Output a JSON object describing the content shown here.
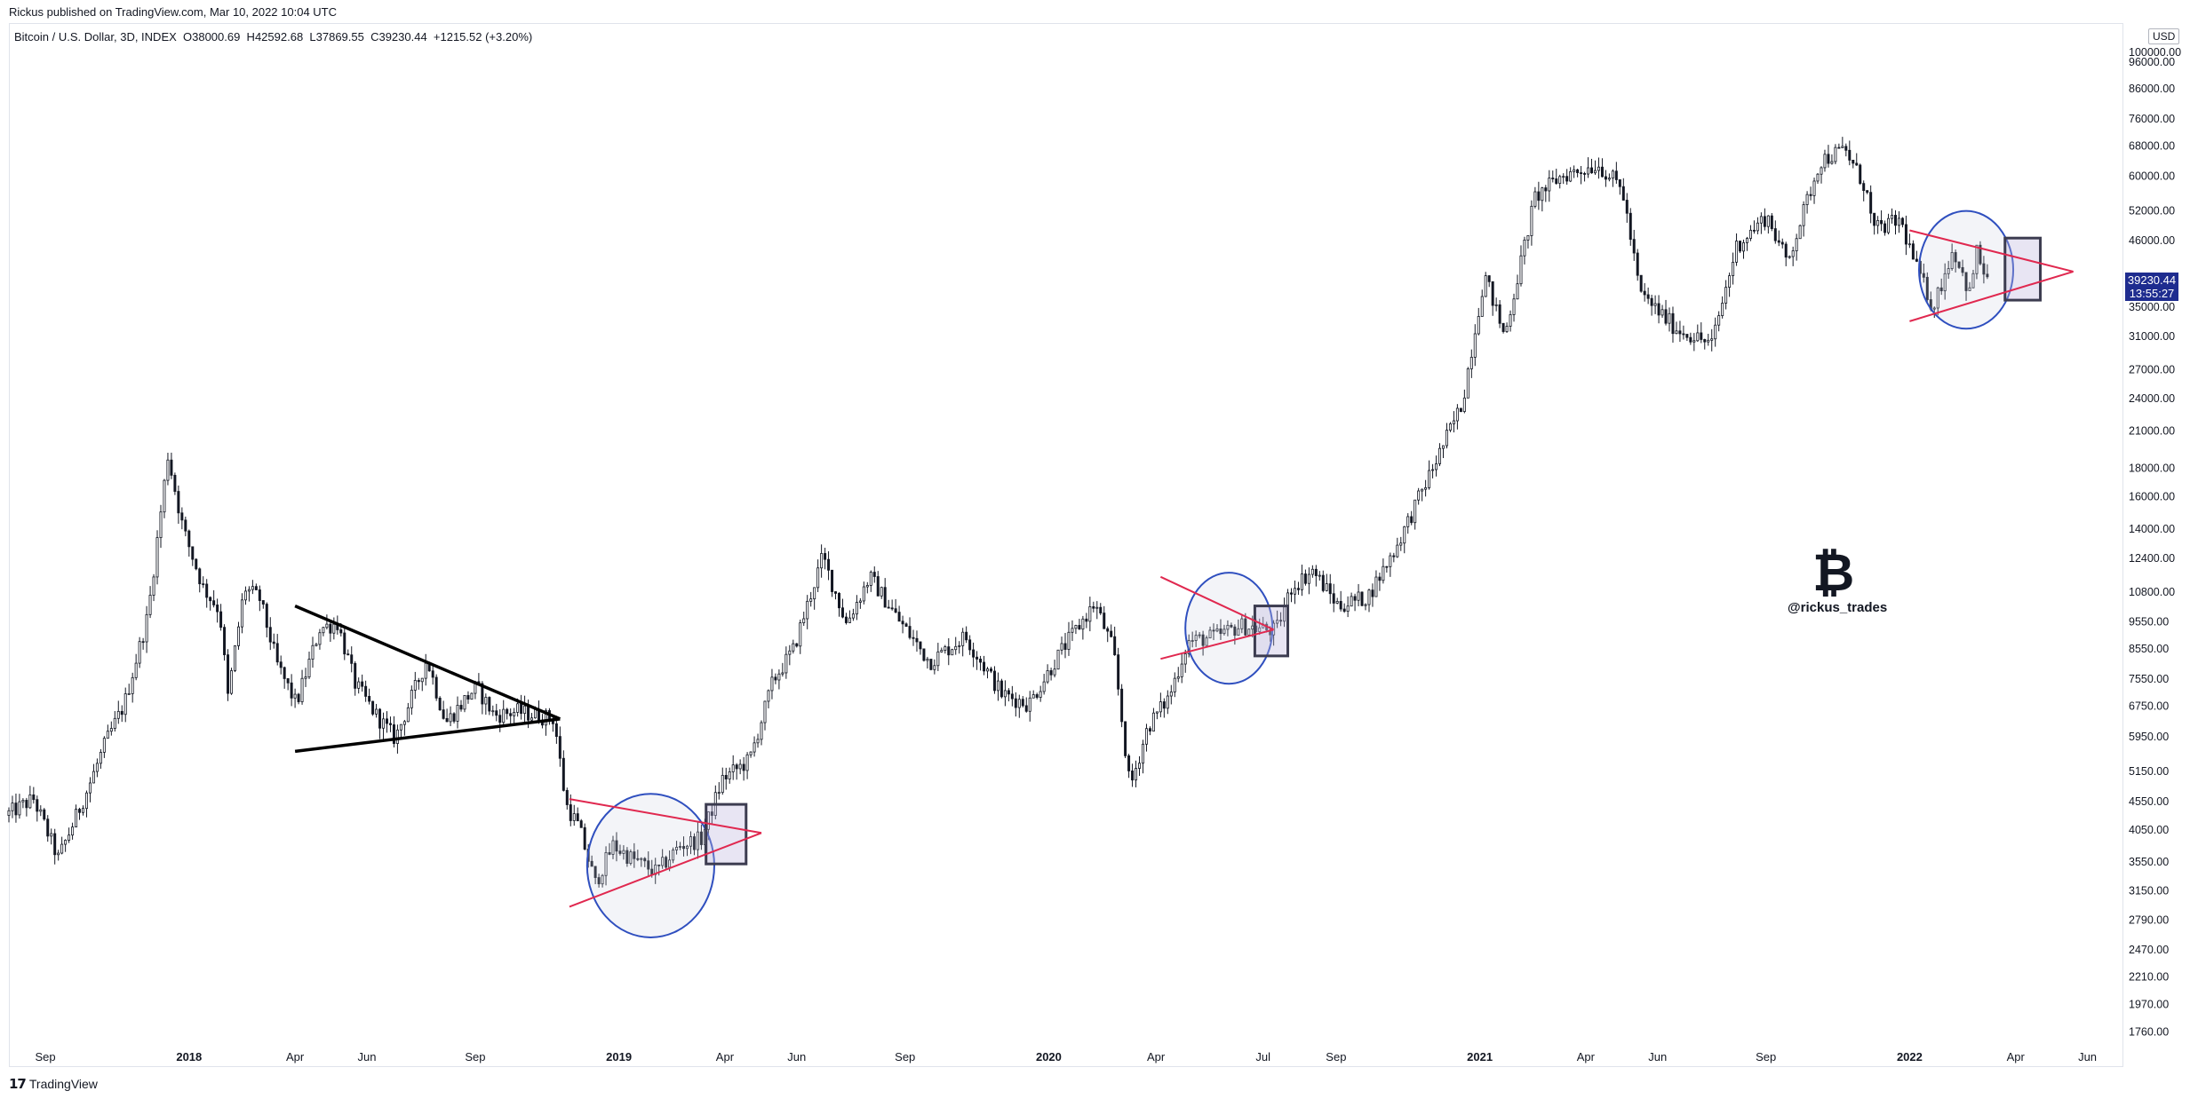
{
  "header": {
    "publisher": "Rickus published on TradingView.com, Mar 10, 2022 10:04 UTC",
    "symbol_line": "Bitcoin / U.S. Dollar, 3D, INDEX  O38000.69  H42592.68  L37869.55  C39230.44  +1215.52 (+3.20%)",
    "currency": "USD"
  },
  "footer": {
    "brand_mark": "𝟭𝟳",
    "brand_name": "TradingView"
  },
  "watermark": {
    "coin": "₿",
    "handle": "@rickus_trades"
  },
  "last_price": {
    "price": "39230.44",
    "countdown": "13:55:27"
  },
  "colors": {
    "candle": "#131722",
    "pattern_line_black": "#000000",
    "pattern_line_red": "#e0284f",
    "ellipse": "#2f4fbf",
    "box": "#3c3c50",
    "price_tag": "#1e2c8f"
  },
  "chart_data": {
    "type": "candlestick",
    "scale": "log",
    "ylim": [
      1700,
      110000
    ],
    "y_ticks": [
      "100000.00",
      "96000.00",
      "86000.00",
      "76000.00",
      "68000.00",
      "60000.00",
      "52000.00",
      "46000.00",
      "39230.44",
      "35000.00",
      "31000.00",
      "27000.00",
      "24000.00",
      "21000.00",
      "18000.00",
      "16000.00",
      "14000.00",
      "12400.00",
      "10800.00",
      "9550.00",
      "8550.00",
      "7550.00",
      "6750.00",
      "5950.00",
      "5150.00",
      "4550.00",
      "4050.00",
      "3550.00",
      "3150.00",
      "2790.00",
      "2470.00",
      "2210.00",
      "1970.00",
      "1760.00"
    ],
    "x_ticks": [
      {
        "label": "Sep",
        "date": "2017-09-01",
        "bold": false
      },
      {
        "label": "2018",
        "date": "2018-01-01",
        "bold": true
      },
      {
        "label": "Apr",
        "date": "2018-04-01",
        "bold": false
      },
      {
        "label": "Jun",
        "date": "2018-06-01",
        "bold": false
      },
      {
        "label": "Sep",
        "date": "2018-09-01",
        "bold": false
      },
      {
        "label": "2019",
        "date": "2019-01-01",
        "bold": true
      },
      {
        "label": "Apr",
        "date": "2019-04-01",
        "bold": false
      },
      {
        "label": "Jun",
        "date": "2019-06-01",
        "bold": false
      },
      {
        "label": "Sep",
        "date": "2019-09-01",
        "bold": false
      },
      {
        "label": "2020",
        "date": "2020-01-01",
        "bold": true
      },
      {
        "label": "Apr",
        "date": "2020-04-01",
        "bold": false
      },
      {
        "label": "Jul",
        "date": "2020-07-01",
        "bold": false
      },
      {
        "label": "Sep",
        "date": "2020-09-01",
        "bold": false
      },
      {
        "label": "2021",
        "date": "2021-01-01",
        "bold": true
      },
      {
        "label": "Apr",
        "date": "2021-04-01",
        "bold": false
      },
      {
        "label": "Jun",
        "date": "2021-06-01",
        "bold": false
      },
      {
        "label": "Sep",
        "date": "2021-09-01",
        "bold": false
      },
      {
        "label": "2022",
        "date": "2022-01-01",
        "bold": true
      },
      {
        "label": "Apr",
        "date": "2022-04-01",
        "bold": false
      },
      {
        "label": "Jun",
        "date": "2022-06-01",
        "bold": false
      }
    ],
    "price_path": [
      [
        "2017-08-01",
        4300
      ],
      [
        "2017-08-25",
        4600
      ],
      [
        "2017-09-15",
        3600
      ],
      [
        "2017-10-10",
        4800
      ],
      [
        "2017-10-25",
        5800
      ],
      [
        "2017-11-10",
        6800
      ],
      [
        "2017-11-30",
        9800
      ],
      [
        "2017-12-17",
        19000
      ],
      [
        "2017-12-30",
        14000
      ],
      [
        "2018-01-16",
        11000
      ],
      [
        "2018-01-30",
        10000
      ],
      [
        "2018-02-06",
        7000
      ],
      [
        "2018-02-20",
        11000
      ],
      [
        "2018-03-05",
        10500
      ],
      [
        "2018-03-20",
        8000
      ],
      [
        "2018-04-05",
        6800
      ],
      [
        "2018-04-25",
        9300
      ],
      [
        "2018-05-10",
        9500
      ],
      [
        "2018-05-25",
        7400
      ],
      [
        "2018-06-12",
        6500
      ],
      [
        "2018-06-28",
        5900
      ],
      [
        "2018-07-25",
        8200
      ],
      [
        "2018-08-10",
        6300
      ],
      [
        "2018-08-28",
        7000
      ],
      [
        "2018-09-05",
        7300
      ],
      [
        "2018-09-20",
        6500
      ],
      [
        "2018-10-10",
        6600
      ],
      [
        "2018-11-10",
        6400
      ],
      [
        "2018-11-20",
        4500
      ],
      [
        "2018-12-01",
        4100
      ],
      [
        "2018-12-15",
        3250
      ],
      [
        "2018-12-30",
        3800
      ],
      [
        "2019-01-15",
        3600
      ],
      [
        "2019-02-05",
        3400
      ],
      [
        "2019-02-25",
        3800
      ],
      [
        "2019-03-15",
        3900
      ],
      [
        "2019-04-02",
        5000
      ],
      [
        "2019-04-25",
        5400
      ],
      [
        "2019-05-15",
        7500
      ],
      [
        "2019-06-01",
        8500
      ],
      [
        "2019-06-26",
        12500
      ],
      [
        "2019-07-16",
        9500
      ],
      [
        "2019-08-05",
        11500
      ],
      [
        "2019-08-30",
        9600
      ],
      [
        "2019-09-25",
        8100
      ],
      [
        "2019-10-25",
        9000
      ],
      [
        "2019-11-25",
        7100
      ],
      [
        "2019-12-18",
        6800
      ],
      [
        "2020-01-15",
        8500
      ],
      [
        "2020-02-12",
        10300
      ],
      [
        "2020-02-28",
        8500
      ],
      [
        "2020-03-13",
        4800
      ],
      [
        "2020-03-28",
        6200
      ],
      [
        "2020-04-15",
        7000
      ],
      [
        "2020-05-01",
        8800
      ],
      [
        "2020-05-25",
        9000
      ],
      [
        "2020-06-15",
        9400
      ],
      [
        "2020-07-15",
        9200
      ],
      [
        "2020-07-28",
        11000
      ],
      [
        "2020-08-15",
        11800
      ],
      [
        "2020-09-06",
        10200
      ],
      [
        "2020-10-01",
        10600
      ],
      [
        "2020-10-25",
        13000
      ],
      [
        "2020-11-25",
        18000
      ],
      [
        "2020-12-20",
        23500
      ],
      [
        "2021-01-08",
        40000
      ],
      [
        "2021-01-25",
        31000
      ],
      [
        "2021-02-20",
        55000
      ],
      [
        "2021-03-14",
        60000
      ],
      [
        "2021-04-14",
        63000
      ],
      [
        "2021-05-05",
        57000
      ],
      [
        "2021-05-20",
        37000
      ],
      [
        "2021-06-20",
        32000
      ],
      [
        "2021-07-20",
        30000
      ],
      [
        "2021-08-10",
        45000
      ],
      [
        "2021-09-05",
        51000
      ],
      [
        "2021-09-22",
        42000
      ],
      [
        "2021-10-20",
        64000
      ],
      [
        "2021-11-10",
        67000
      ],
      [
        "2021-11-28",
        57000
      ],
      [
        "2021-12-04",
        48000
      ],
      [
        "2021-12-27",
        50000
      ],
      [
        "2022-01-10",
        41000
      ],
      [
        "2022-01-24",
        35000
      ],
      [
        "2022-02-10",
        44500
      ],
      [
        "2022-02-24",
        37000
      ],
      [
        "2022-03-02",
        44000
      ],
      [
        "2022-03-10",
        39230
      ]
    ],
    "annotations": {
      "triangles": [
        {
          "color": "black",
          "start": "2018-04-01",
          "apex": "2018-11-12",
          "upper_start": 10200,
          "lower_start": 5600,
          "apex_price": 6400
        },
        {
          "color": "red",
          "start": "2018-11-20",
          "apex": "2019-05-02",
          "upper_start": 4600,
          "lower_start": 2950,
          "apex_price": 4000
        },
        {
          "color": "red",
          "start": "2020-04-05",
          "apex": "2020-07-10",
          "upper_start": 11500,
          "lower_start": 8200,
          "apex_price": 9250
        },
        {
          "color": "red",
          "start": "2022-01-01",
          "apex": "2022-05-20",
          "upper_start": 48000,
          "lower_start": 33000,
          "apex_price": 40500
        }
      ],
      "ellipses": [
        {
          "center": "2019-01-28",
          "price": 3480,
          "half_width_days": 54,
          "price_top": 4700,
          "price_bottom": 2600
        },
        {
          "center": "2020-06-02",
          "price": 9200,
          "half_width_days": 37,
          "price_top": 11700,
          "price_bottom": 7400
        },
        {
          "center": "2022-02-18",
          "price": 40000,
          "half_width_days": 40,
          "price_top": 52000,
          "price_bottom": 32000
        }
      ],
      "boxes": [
        {
          "start": "2019-03-16",
          "end": "2019-04-19",
          "price_top": 4500,
          "price_bottom": 3520
        },
        {
          "start": "2020-06-24",
          "end": "2020-07-22",
          "price_top": 10200,
          "price_bottom": 8300
        },
        {
          "start": "2022-03-23",
          "end": "2022-04-22",
          "price_top": 46500,
          "price_bottom": 36000
        }
      ]
    }
  }
}
